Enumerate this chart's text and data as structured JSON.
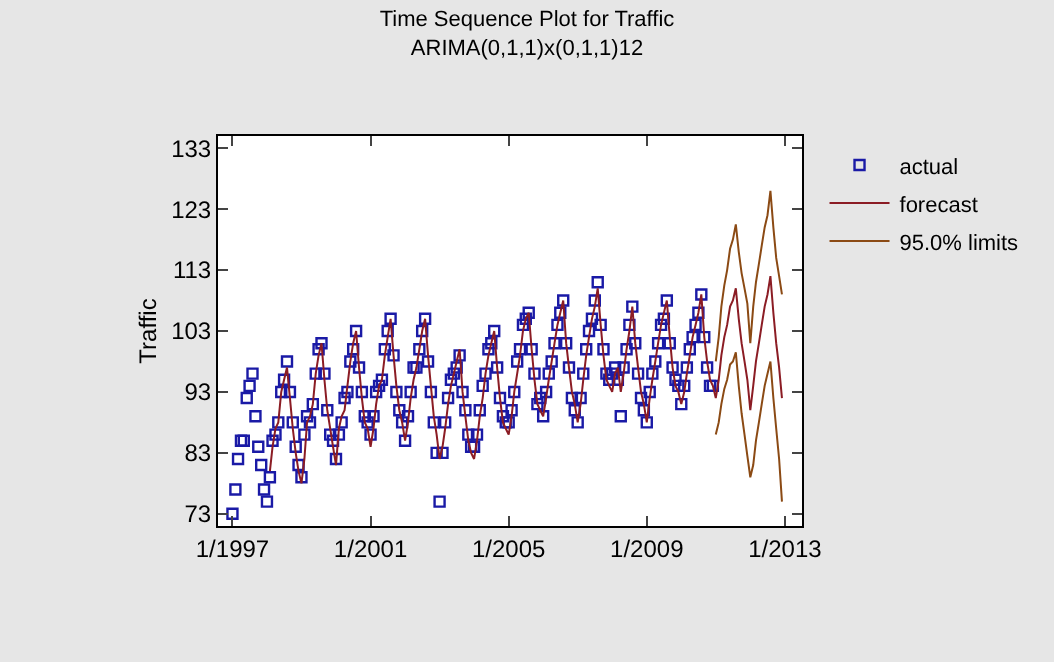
{
  "chart_data": {
    "type": "line",
    "title": "Time Sequence Plot for Traffic",
    "subtitle": "ARIMA(0,1,1)x(0,1,1)12",
    "ylabel": "Traffic",
    "xlim": [
      "1996-08",
      "2013-07"
    ],
    "xticks": [
      {
        "value": "1997-01",
        "label": "1/1997"
      },
      {
        "value": "2001-01",
        "label": "1/2001"
      },
      {
        "value": "2005-01",
        "label": "1/2005"
      },
      {
        "value": "2009-01",
        "label": "1/2009"
      },
      {
        "value": "2013-01",
        "label": "1/2013"
      }
    ],
    "ylim": [
      71,
      135
    ],
    "yticks": [
      73,
      83,
      93,
      103,
      113,
      123,
      133
    ],
    "legend": "right",
    "series": [
      {
        "name": "actual",
        "type": "scatter",
        "marker": "square",
        "color": "#1a1aa6",
        "x": [
          "1997-01",
          "1997-02",
          "1997-03",
          "1997-04",
          "1997-05",
          "1997-06",
          "1997-07",
          "1997-08",
          "1997-09",
          "1997-10",
          "1997-11",
          "1997-12",
          "1998-01",
          "1998-02",
          "1998-03",
          "1998-04",
          "1998-05",
          "1998-06",
          "1998-07",
          "1998-08",
          "1998-09",
          "1998-10",
          "1998-11",
          "1998-12",
          "1999-01",
          "1999-02",
          "1999-03",
          "1999-04",
          "1999-05",
          "1999-06",
          "1999-07",
          "1999-08",
          "1999-09",
          "1999-10",
          "1999-11",
          "1999-12",
          "2000-01",
          "2000-02",
          "2000-03",
          "2000-04",
          "2000-05",
          "2000-06",
          "2000-07",
          "2000-08",
          "2000-09",
          "2000-10",
          "2000-11",
          "2000-12",
          "2001-01",
          "2001-02",
          "2001-03",
          "2001-04",
          "2001-05",
          "2001-06",
          "2001-07",
          "2001-08",
          "2001-09",
          "2001-10",
          "2001-11",
          "2001-12",
          "2002-01",
          "2002-02",
          "2002-03",
          "2002-04",
          "2002-05",
          "2002-06",
          "2002-07",
          "2002-08",
          "2002-09",
          "2002-10",
          "2002-11",
          "2002-12",
          "2003-01",
          "2003-02",
          "2003-03",
          "2003-04",
          "2003-05",
          "2003-06",
          "2003-07",
          "2003-08",
          "2003-09",
          "2003-10",
          "2003-11",
          "2003-12",
          "2004-01",
          "2004-02",
          "2004-03",
          "2004-04",
          "2004-05",
          "2004-06",
          "2004-07",
          "2004-08",
          "2004-09",
          "2004-10",
          "2004-11",
          "2004-12",
          "2005-01",
          "2005-02",
          "2005-03",
          "2005-04",
          "2005-05",
          "2005-06",
          "2005-07",
          "2005-08",
          "2005-09",
          "2005-10",
          "2005-11",
          "2005-12",
          "2006-01",
          "2006-02",
          "2006-03",
          "2006-04",
          "2006-05",
          "2006-06",
          "2006-07",
          "2006-08",
          "2006-09",
          "2006-10",
          "2006-11",
          "2006-12",
          "2007-01",
          "2007-02",
          "2007-03",
          "2007-04",
          "2007-05",
          "2007-06",
          "2007-07",
          "2007-08",
          "2007-09",
          "2007-10",
          "2007-11",
          "2007-12",
          "2008-01",
          "2008-02",
          "2008-03",
          "2008-04",
          "2008-05",
          "2008-06",
          "2008-07",
          "2008-08",
          "2008-09",
          "2008-10",
          "2008-11",
          "2008-12",
          "2009-01",
          "2009-02",
          "2009-03",
          "2009-04",
          "2009-05",
          "2009-06",
          "2009-07",
          "2009-08",
          "2009-09",
          "2009-10",
          "2009-11",
          "2009-12",
          "2010-01",
          "2010-02",
          "2010-03",
          "2010-04",
          "2010-05",
          "2010-06",
          "2010-07",
          "2010-08",
          "2010-09",
          "2010-10",
          "2010-11",
          "2010-12"
        ],
        "values": [
          73,
          77,
          82,
          85,
          85,
          92,
          94,
          96,
          89,
          84,
          81,
          77,
          75,
          79,
          85,
          86,
          88,
          93,
          95,
          98,
          93,
          88,
          84,
          81,
          79,
          86,
          89,
          88,
          91,
          96,
          100,
          101,
          96,
          90,
          86,
          85,
          82,
          86,
          88,
          92,
          93,
          98,
          100,
          103,
          97,
          93,
          89,
          88,
          86,
          89,
          93,
          94,
          95,
          100,
          103,
          105,
          99,
          93,
          90,
          88,
          85,
          89,
          93,
          97,
          97,
          100,
          103,
          105,
          98,
          93,
          88,
          83,
          75,
          83,
          88,
          92,
          95,
          96,
          97,
          99,
          93,
          90,
          86,
          84,
          84,
          86,
          90,
          94,
          96,
          100,
          101,
          103,
          97,
          92,
          89,
          88,
          88,
          90,
          93,
          98,
          100,
          104,
          105,
          106,
          100,
          96,
          91,
          92,
          89,
          93,
          96,
          98,
          101,
          104,
          106,
          108,
          101,
          97,
          92,
          90,
          88,
          92,
          96,
          100,
          103,
          105,
          108,
          111,
          104,
          100,
          96,
          95,
          96,
          97,
          95,
          89,
          97,
          100,
          104,
          107,
          101,
          96,
          92,
          90,
          88,
          93,
          96,
          98,
          101,
          104,
          105,
          108,
          101,
          97,
          95,
          94,
          91,
          94,
          97,
          100,
          102,
          104,
          106,
          109,
          102,
          97,
          94,
          94
        ]
      },
      {
        "name": "forecast",
        "color": "#8b1c24",
        "x": [
          "1998-02",
          "1998-03",
          "1998-04",
          "1998-05",
          "1998-06",
          "1998-07",
          "1998-08",
          "1998-09",
          "1998-10",
          "1998-11",
          "1998-12",
          "1999-01",
          "1999-02",
          "1999-03",
          "1999-04",
          "1999-05",
          "1999-06",
          "1999-07",
          "1999-08",
          "1999-09",
          "1999-10",
          "1999-11",
          "1999-12",
          "2000-01",
          "2000-02",
          "2000-03",
          "2000-04",
          "2000-05",
          "2000-06",
          "2000-07",
          "2000-08",
          "2000-09",
          "2000-10",
          "2000-11",
          "2000-12",
          "2001-01",
          "2001-02",
          "2001-03",
          "2001-04",
          "2001-05",
          "2001-06",
          "2001-07",
          "2001-08",
          "2001-09",
          "2001-10",
          "2001-11",
          "2001-12",
          "2002-01",
          "2002-02",
          "2002-03",
          "2002-04",
          "2002-05",
          "2002-06",
          "2002-07",
          "2002-08",
          "2002-09",
          "2002-10",
          "2002-11",
          "2002-12",
          "2003-01",
          "2003-02",
          "2003-03",
          "2003-04",
          "2003-05",
          "2003-06",
          "2003-07",
          "2003-08",
          "2003-09",
          "2003-10",
          "2003-11",
          "2003-12",
          "2004-01",
          "2004-02",
          "2004-03",
          "2004-04",
          "2004-05",
          "2004-06",
          "2004-07",
          "2004-08",
          "2004-09",
          "2004-10",
          "2004-11",
          "2004-12",
          "2005-01",
          "2005-02",
          "2005-03",
          "2005-04",
          "2005-05",
          "2005-06",
          "2005-07",
          "2005-08",
          "2005-09",
          "2005-10",
          "2005-11",
          "2005-12",
          "2006-01",
          "2006-02",
          "2006-03",
          "2006-04",
          "2006-05",
          "2006-06",
          "2006-07",
          "2006-08",
          "2006-09",
          "2006-10",
          "2006-11",
          "2006-12",
          "2007-01",
          "2007-02",
          "2007-03",
          "2007-04",
          "2007-05",
          "2007-06",
          "2007-07",
          "2007-08",
          "2007-09",
          "2007-10",
          "2007-11",
          "2007-12",
          "2008-01",
          "2008-02",
          "2008-03",
          "2008-04",
          "2008-05",
          "2008-06",
          "2008-07",
          "2008-08",
          "2008-09",
          "2008-10",
          "2008-11",
          "2008-12",
          "2009-01",
          "2009-02",
          "2009-03",
          "2009-04",
          "2009-05",
          "2009-06",
          "2009-07",
          "2009-08",
          "2009-09",
          "2009-10",
          "2009-11",
          "2009-12",
          "2010-01",
          "2010-02",
          "2010-03",
          "2010-04",
          "2010-05",
          "2010-06",
          "2010-07",
          "2010-08",
          "2010-09",
          "2010-10",
          "2010-11",
          "2010-12",
          "2011-01",
          "2011-02",
          "2011-03",
          "2011-04",
          "2011-05",
          "2011-06",
          "2011-07",
          "2011-08",
          "2011-09",
          "2011-10",
          "2011-11",
          "2011-12",
          "2012-01",
          "2012-02",
          "2012-03",
          "2012-04",
          "2012-05",
          "2012-06",
          "2012-07",
          "2012-08",
          "2012-09",
          "2012-10",
          "2012-11",
          "2012-12"
        ],
        "values": [
          80,
          84,
          87,
          88,
          93,
          95,
          97,
          92,
          87,
          83,
          80,
          78,
          82,
          88,
          89,
          91,
          96,
          99,
          101,
          95,
          90,
          87,
          84,
          81,
          87,
          89,
          90,
          94,
          98,
          101,
          103,
          97,
          92,
          88,
          87,
          84,
          87,
          91,
          94,
          95,
          99,
          102,
          105,
          99,
          94,
          90,
          88,
          85,
          88,
          92,
          95,
          97,
          100,
          103,
          105,
          99,
          94,
          89,
          86,
          82,
          84,
          87,
          91,
          94,
          96,
          98,
          100,
          93,
          89,
          85,
          83,
          82,
          85,
          89,
          92,
          96,
          99,
          101,
          103,
          97,
          92,
          88,
          87,
          86,
          89,
          93,
          96,
          99,
          103,
          105,
          106,
          100,
          95,
          91,
          90,
          89,
          92,
          95,
          98,
          101,
          104,
          106,
          108,
          101,
          97,
          93,
          91,
          88,
          91,
          95,
          99,
          102,
          105,
          107,
          110,
          104,
          99,
          95,
          94,
          93,
          96,
          97,
          93,
          96,
          100,
          103,
          107,
          101,
          97,
          93,
          91,
          88,
          92,
          95,
          98,
          101,
          104,
          106,
          108,
          102,
          97,
          94,
          93,
          91,
          93,
          96,
          99,
          102,
          104,
          106,
          109,
          102,
          98,
          95,
          94,
          92,
          95,
          99,
          102,
          104,
          107,
          108,
          110,
          105,
          101,
          98,
          95,
          90,
          94,
          98,
          101,
          104,
          107,
          109,
          112,
          106,
          101,
          97,
          92
        ]
      },
      {
        "name": "95.0% limits",
        "color": "#8b4a14",
        "x": [
          "2011-01",
          "2011-02",
          "2011-03",
          "2011-04",
          "2011-05",
          "2011-06",
          "2011-07",
          "2011-08",
          "2011-09",
          "2011-10",
          "2011-11",
          "2011-12",
          "2012-01",
          "2012-02",
          "2012-03",
          "2012-04",
          "2012-05",
          "2012-06",
          "2012-07",
          "2012-08",
          "2012-09",
          "2012-10",
          "2012-11",
          "2012-12"
        ],
        "values": [
          98,
          102,
          107,
          110.5,
          113,
          116.5,
          118,
          120.5,
          116,
          112.5,
          110,
          107.5,
          101,
          107,
          111,
          114,
          117,
          120,
          122,
          126,
          120,
          115,
          112,
          109
        ]
      },
      {
        "color": "#8b4a14",
        "x": [
          "2011-01",
          "2011-02",
          "2011-03",
          "2011-04",
          "2011-05",
          "2011-06",
          "2011-07",
          "2011-08",
          "2011-09",
          "2011-10",
          "2011-11",
          "2011-12",
          "2012-01",
          "2012-02",
          "2012-03",
          "2012-04",
          "2012-05",
          "2012-06",
          "2012-07",
          "2012-08",
          "2012-09",
          "2012-10",
          "2012-11",
          "2012-12"
        ],
        "values": [
          86,
          88,
          91,
          93.5,
          95,
          97.5,
          98,
          99.5,
          94,
          89.5,
          86,
          82.5,
          79,
          81,
          85,
          88,
          91,
          94,
          96,
          98,
          92,
          87,
          82,
          75
        ]
      }
    ]
  }
}
